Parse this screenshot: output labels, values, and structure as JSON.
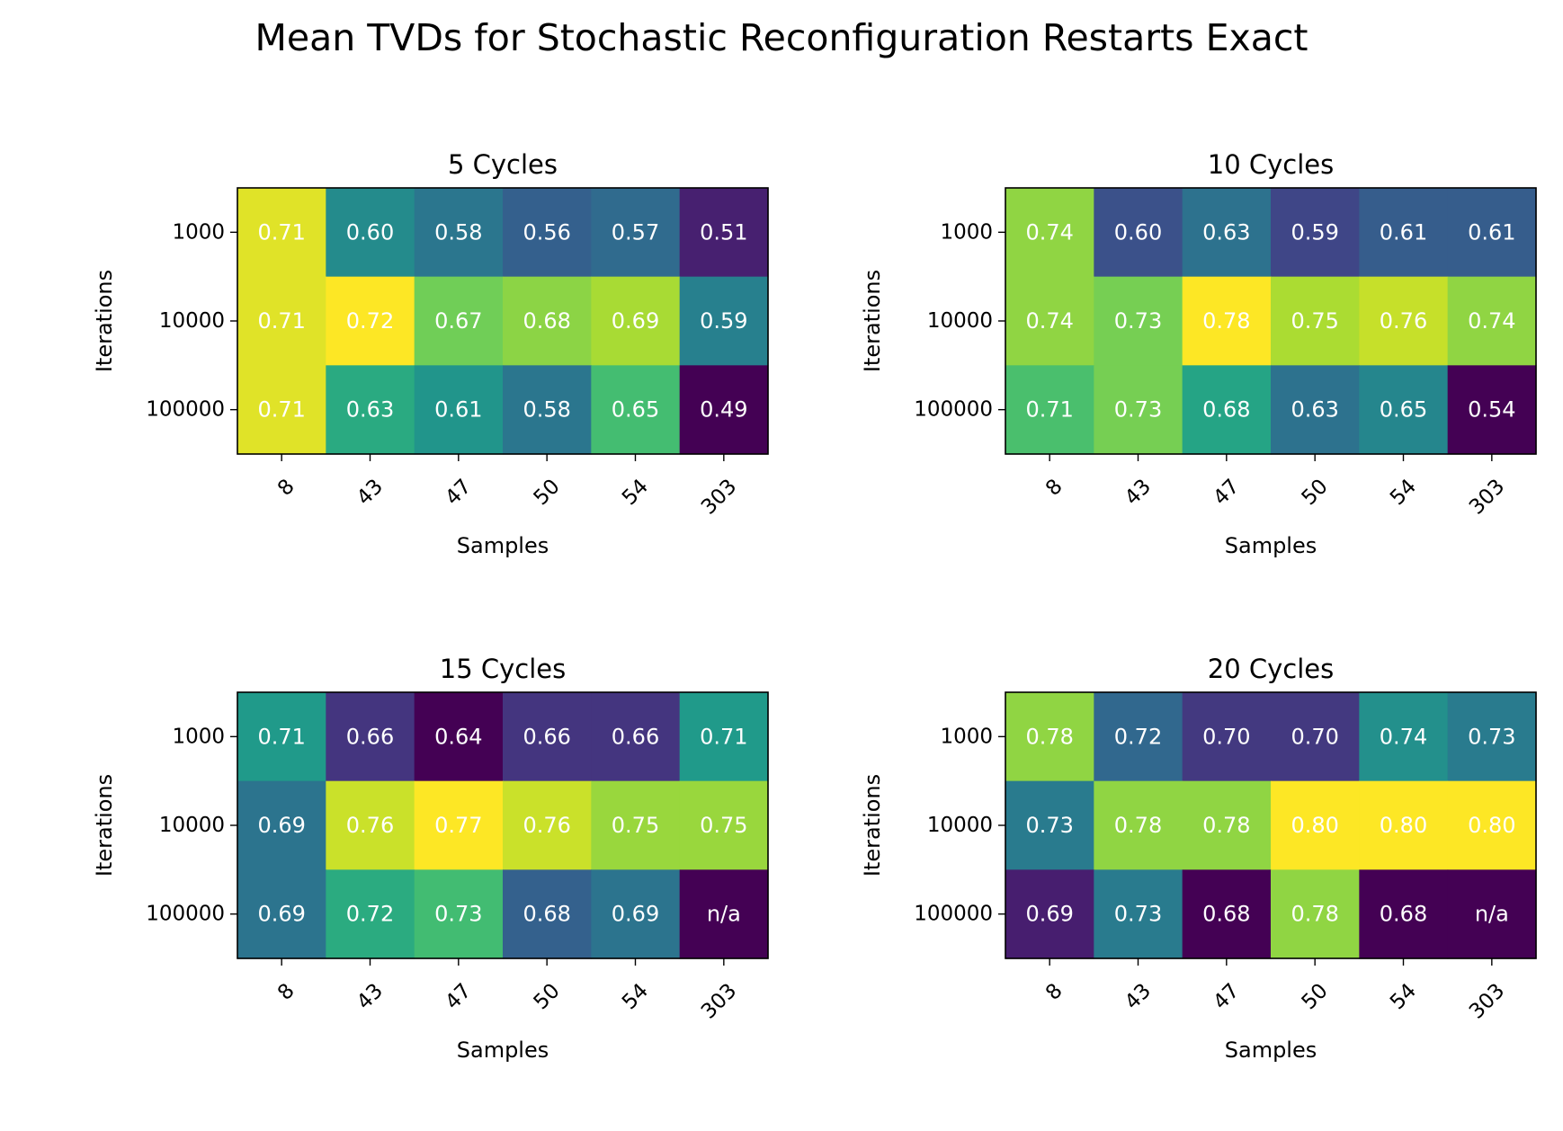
{
  "title": "Mean TVDs for Stochastic Reconfiguration Restarts Exact",
  "chart_data": [
    {
      "type": "heatmap",
      "title": "5 Cycles",
      "xlabel": "Samples",
      "ylabel": "Iterations",
      "x": [
        "8",
        "43",
        "47",
        "50",
        "54",
        "303"
      ],
      "y": [
        "1000",
        "10000",
        "100000"
      ],
      "values": [
        [
          0.71,
          0.6,
          0.58,
          0.56,
          0.57,
          0.51
        ],
        [
          0.71,
          0.72,
          0.67,
          0.68,
          0.69,
          0.59
        ],
        [
          0.71,
          0.63,
          0.61,
          0.58,
          0.65,
          0.49
        ]
      ],
      "labels": [
        [
          "0.71",
          "0.60",
          "0.58",
          "0.56",
          "0.57",
          "0.51"
        ],
        [
          "0.71",
          "0.72",
          "0.67",
          "0.68",
          "0.69",
          "0.59"
        ],
        [
          "0.71",
          "0.63",
          "0.61",
          "0.58",
          "0.65",
          "0.49"
        ]
      ],
      "colormap": "viridis"
    },
    {
      "type": "heatmap",
      "title": "10 Cycles",
      "xlabel": "Samples",
      "ylabel": "Iterations",
      "x": [
        "8",
        "43",
        "47",
        "50",
        "54",
        "303"
      ],
      "y": [
        "1000",
        "10000",
        "100000"
      ],
      "values": [
        [
          0.74,
          0.6,
          0.63,
          0.59,
          0.61,
          0.61
        ],
        [
          0.74,
          0.73,
          0.78,
          0.75,
          0.76,
          0.74
        ],
        [
          0.71,
          0.73,
          0.68,
          0.63,
          0.65,
          0.54
        ]
      ],
      "labels": [
        [
          "0.74",
          "0.60",
          "0.63",
          "0.59",
          "0.61",
          "0.61"
        ],
        [
          "0.74",
          "0.73",
          "0.78",
          "0.75",
          "0.76",
          "0.74"
        ],
        [
          "0.71",
          "0.73",
          "0.68",
          "0.63",
          "0.65",
          "0.54"
        ]
      ],
      "colormap": "viridis"
    },
    {
      "type": "heatmap",
      "title": "15 Cycles",
      "xlabel": "Samples",
      "ylabel": "Iterations",
      "x": [
        "8",
        "43",
        "47",
        "50",
        "54",
        "303"
      ],
      "y": [
        "1000",
        "10000",
        "100000"
      ],
      "values": [
        [
          0.71,
          0.66,
          0.64,
          0.66,
          0.66,
          0.71
        ],
        [
          0.69,
          0.76,
          0.77,
          0.76,
          0.75,
          0.75
        ],
        [
          0.69,
          0.72,
          0.73,
          0.68,
          0.69,
          null
        ]
      ],
      "labels": [
        [
          "0.71",
          "0.66",
          "0.64",
          "0.66",
          "0.66",
          "0.71"
        ],
        [
          "0.69",
          "0.76",
          "0.77",
          "0.76",
          "0.75",
          "0.75"
        ],
        [
          "0.69",
          "0.72",
          "0.73",
          "0.68",
          "0.69",
          "n/a"
        ]
      ],
      "colormap": "viridis"
    },
    {
      "type": "heatmap",
      "title": "20 Cycles",
      "xlabel": "Samples",
      "ylabel": "Iterations",
      "x": [
        "8",
        "43",
        "47",
        "50",
        "54",
        "303"
      ],
      "y": [
        "1000",
        "10000",
        "100000"
      ],
      "values": [
        [
          0.78,
          0.72,
          0.7,
          0.7,
          0.74,
          0.73
        ],
        [
          0.73,
          0.78,
          0.78,
          0.8,
          0.8,
          0.8
        ],
        [
          0.69,
          0.73,
          0.68,
          0.78,
          0.68,
          null
        ]
      ],
      "labels": [
        [
          "0.78",
          "0.72",
          "0.70",
          "0.70",
          "0.74",
          "0.73"
        ],
        [
          "0.73",
          "0.78",
          "0.78",
          "0.80",
          "0.80",
          "0.80"
        ],
        [
          "0.69",
          "0.73",
          "0.68",
          "0.78",
          "0.68",
          "n/a"
        ]
      ],
      "colormap": "viridis"
    }
  ]
}
